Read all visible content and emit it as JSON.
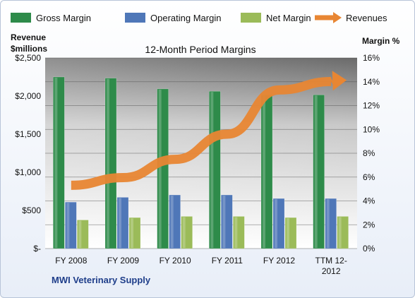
{
  "chart_data": {
    "type": "bar",
    "title": "12-Month Period Margins",
    "company": "MWI Veterinary Supply",
    "categories": [
      "FY 2008",
      "FY 2009",
      "FY 2010",
      "FY 2011",
      "FY 2012",
      "TTM 12-2012"
    ],
    "category_lines": [
      [
        "FY 2008"
      ],
      [
        "FY 2009"
      ],
      [
        "FY 2010"
      ],
      [
        "FY 2011"
      ],
      [
        "FY 2012"
      ],
      [
        "TTM 12-",
        "2012"
      ]
    ],
    "y_left": {
      "label_line1": "Revenue",
      "label_line2": "$millions",
      "ticks": [
        0,
        500,
        1000,
        1500,
        2000,
        2500
      ],
      "tick_labels": [
        "$-",
        "$500",
        "$1,000",
        "$1,500",
        "$2,000",
        "$2,500"
      ],
      "range": [
        0,
        2500
      ]
    },
    "y_right": {
      "label": "Margin %",
      "ticks": [
        0,
        2,
        4,
        6,
        8,
        10,
        12,
        14,
        16
      ],
      "tick_labels": [
        "0%",
        "2%",
        "4%",
        "6%",
        "8%",
        "10%",
        "12%",
        "14%",
        "16%"
      ],
      "range": [
        0,
        16
      ]
    },
    "series": [
      {
        "name": "Gross Margin",
        "axis": "right",
        "color": "#2e8b4a",
        "values": [
          14.4,
          14.3,
          13.4,
          13.2,
          12.9,
          12.9
        ]
      },
      {
        "name": "Operating Margin",
        "axis": "right",
        "color": "#4f77b8",
        "values": [
          3.9,
          4.3,
          4.5,
          4.5,
          4.2,
          4.2
        ]
      },
      {
        "name": "Net Margin",
        "axis": "right",
        "color": "#9bbb59",
        "values": [
          2.4,
          2.6,
          2.7,
          2.7,
          2.6,
          2.7
        ]
      },
      {
        "name": "Revenues",
        "axis": "left",
        "type": "line-arrow",
        "color": "#e88633",
        "values": [
          830,
          930,
          1170,
          1500,
          2080,
          2190
        ]
      }
    ],
    "legend_position": "top",
    "grid": true
  }
}
